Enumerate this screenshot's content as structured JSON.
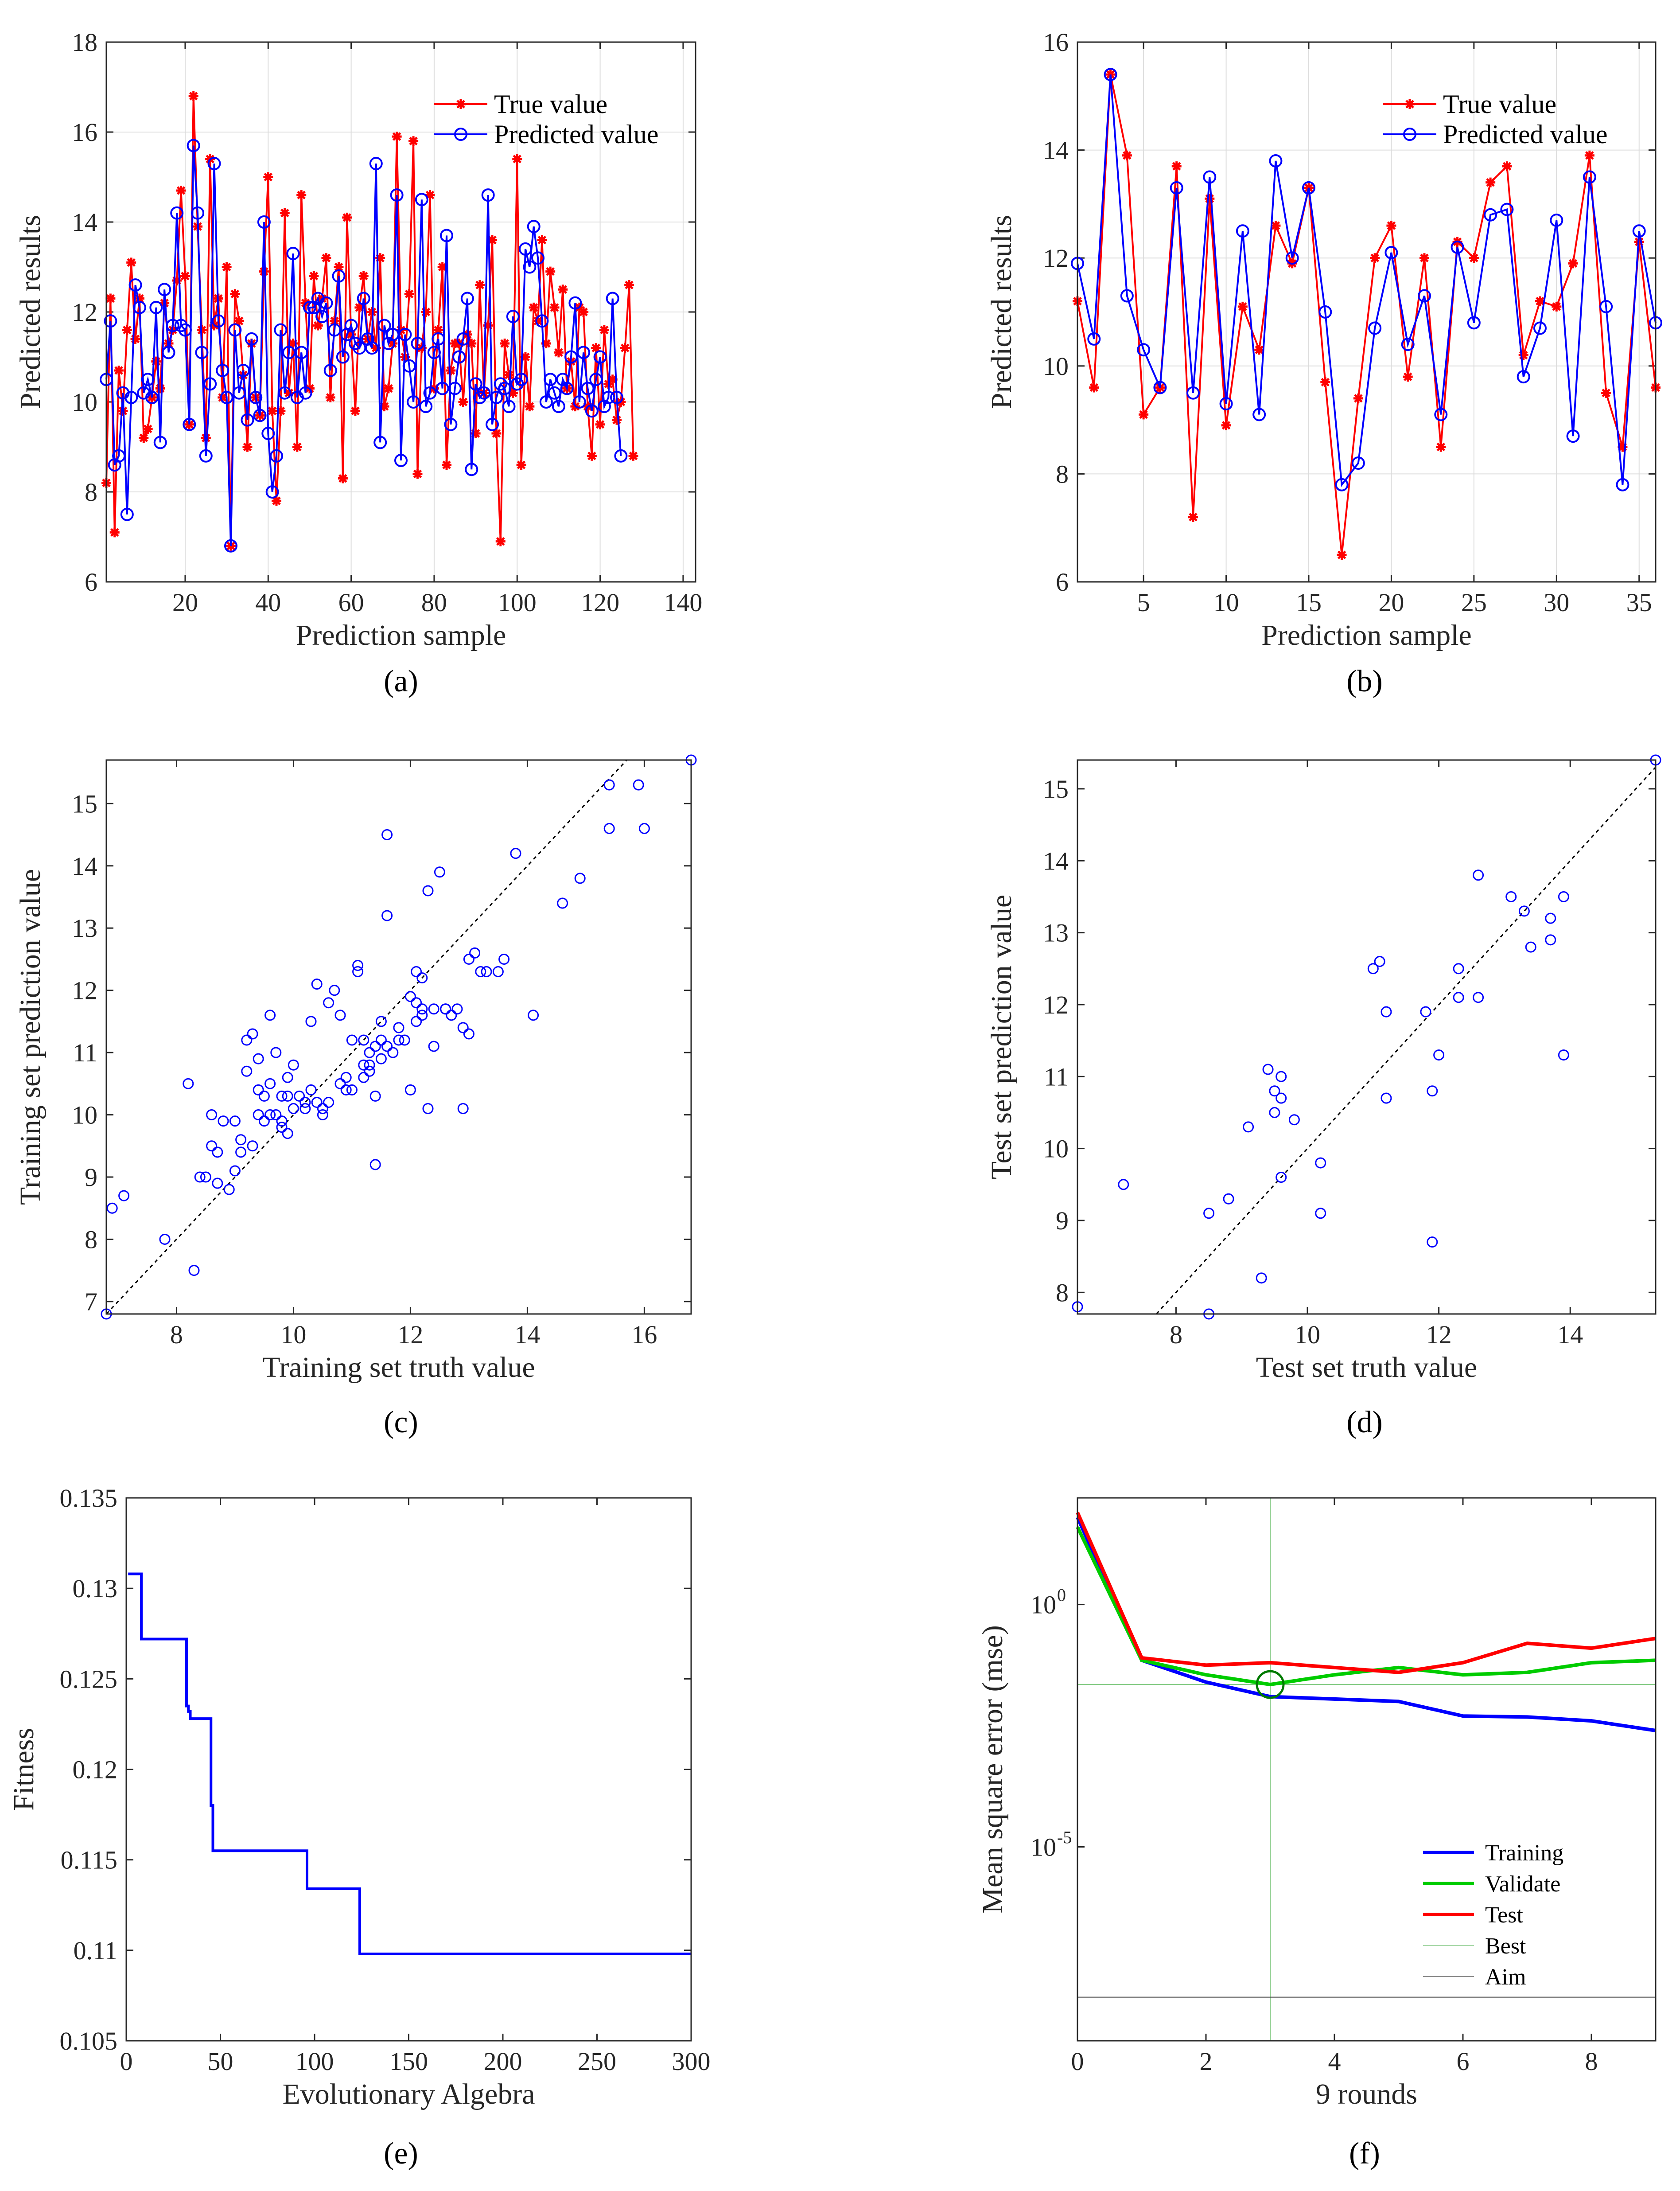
{
  "chart_data": [
    {
      "id": "a",
      "type": "line",
      "panel_label": "(a)",
      "xlabel": "Prediction sample",
      "ylabel": "Predicted results",
      "xlim": [
        1,
        143
      ],
      "ylim": [
        6,
        18
      ],
      "xticks": [
        20,
        40,
        60,
        80,
        100,
        120,
        140
      ],
      "yticks": [
        6,
        8,
        10,
        12,
        14,
        16,
        18
      ],
      "legend": [
        "True value",
        "Predicted value"
      ],
      "series": [
        {
          "name": "True value",
          "color": "#ff0000",
          "marker": "star",
          "values": [
            8.2,
            12.3,
            7.1,
            10.7,
            9.8,
            11.6,
            13.1,
            11.4,
            12.3,
            9.2,
            9.4,
            10.1,
            10.9,
            10.3,
            12.2,
            11.3,
            11.6,
            12.7,
            14.7,
            12.8,
            9.5,
            16.8,
            13.9,
            11.6,
            9.2,
            15.4,
            11.7,
            12.3,
            10.1,
            13.0,
            6.8,
            12.4,
            11.8,
            10.6,
            9.0,
            11.3,
            10.1,
            9.7,
            12.9,
            15.0,
            9.8,
            7.8,
            9.8,
            14.2,
            10.2,
            11.3,
            9.0,
            14.6,
            12.2,
            10.3,
            12.8,
            11.7,
            12.3,
            13.2,
            10.1,
            11.8,
            13.0,
            8.3,
            14.1,
            11.5,
            9.8,
            12.1,
            12.8,
            11.4,
            12.0,
            11.2,
            13.2,
            9.9,
            10.3,
            11.3,
            15.9,
            11.6,
            11.0,
            12.4,
            15.8,
            8.4,
            11.2,
            12.0,
            14.6,
            10.3,
            11.6,
            13.0,
            8.6,
            10.7,
            11.3,
            11.3,
            10.0,
            11.5,
            11.3,
            9.3,
            12.6,
            10.2,
            11.7,
            13.6,
            9.3,
            6.9,
            11.3,
            10.6,
            10.2,
            15.4,
            8.6,
            11.0,
            9.9,
            12.1,
            11.8,
            13.6,
            11.3,
            12.9,
            12.1,
            11.1,
            12.5,
            10.3,
            10.9,
            9.9,
            12.1,
            12.0,
            9.9,
            8.8,
            11.2,
            9.5,
            11.6,
            10.4,
            10.5,
            9.6,
            10.0,
            11.2,
            12.6,
            8.8
          ]
        },
        {
          "name": "Predicted value",
          "color": "#0000ff",
          "marker": "circle",
          "values": [
            10.5,
            11.8,
            8.6,
            8.8,
            10.2,
            7.5,
            10.1,
            12.6,
            12.1,
            10.2,
            10.5,
            10.1,
            12.1,
            9.1,
            12.5,
            11.1,
            11.7,
            14.2,
            11.7,
            11.6,
            9.5,
            15.7,
            14.2,
            11.1,
            8.8,
            10.4,
            15.3,
            11.8,
            10.7,
            10.1,
            6.8,
            11.6,
            10.2,
            10.7,
            9.6,
            11.4,
            10.1,
            9.7,
            14.0,
            9.3,
            8.0,
            8.8,
            11.6,
            10.2,
            11.1,
            13.3,
            10.1,
            11.1,
            10.2,
            12.1,
            12.1,
            12.3,
            11.9,
            12.2,
            10.7,
            11.6,
            12.8,
            11.0,
            11.5,
            11.7,
            11.3,
            11.2,
            12.3,
            11.4,
            11.2,
            15.3,
            9.1,
            11.7,
            11.3,
            11.5,
            14.6,
            8.7,
            11.5,
            10.8,
            10.0,
            11.3,
            14.5,
            9.9,
            10.2,
            11.1,
            11.4,
            10.3,
            13.7,
            9.5,
            10.3,
            11.0,
            11.4,
            12.3,
            8.5,
            10.4,
            10.1,
            10.2,
            14.6,
            9.5,
            10.1,
            10.4,
            10.3,
            9.9,
            11.9,
            10.4,
            10.5,
            13.4,
            13.0,
            13.9,
            13.2,
            11.8,
            10.0,
            10.5,
            10.2,
            9.9,
            10.5,
            10.3,
            11.0,
            12.2,
            10.0,
            11.1,
            10.3,
            9.8,
            10.5,
            11.0,
            9.9,
            10.1,
            12.3,
            10.1,
            8.8
          ]
        }
      ]
    },
    {
      "id": "b",
      "type": "line",
      "panel_label": "(b)",
      "xlabel": "Prediction sample",
      "ylabel": "Predicted results",
      "xlim": [
        1,
        36
      ],
      "ylim": [
        6,
        16
      ],
      "xticks": [
        5,
        10,
        15,
        20,
        25,
        30,
        35
      ],
      "yticks": [
        6,
        8,
        10,
        12,
        14,
        16
      ],
      "legend": [
        "True value",
        "Predicted value"
      ],
      "series": [
        {
          "name": "True value",
          "color": "#ff0000",
          "marker": "star",
          "values": [
            11.2,
            9.6,
            15.4,
            13.9,
            9.1,
            9.6,
            13.7,
            7.2,
            13.1,
            8.9,
            11.1,
            10.3,
            12.6,
            11.9,
            13.3,
            9.7,
            6.5,
            9.4,
            12.0,
            12.6,
            9.8,
            12.0,
            8.5,
            12.3,
            12.0,
            13.4,
            13.7,
            10.2,
            11.2,
            11.1,
            11.9,
            13.9,
            9.5,
            8.5,
            12.3,
            9.6
          ]
        },
        {
          "name": "Predicted value",
          "color": "#0000ff",
          "marker": "circle",
          "values": [
            11.9,
            10.5,
            15.4,
            11.3,
            10.3,
            9.6,
            13.3,
            9.5,
            13.5,
            9.3,
            12.5,
            9.1,
            13.8,
            12.0,
            13.3,
            11.0,
            7.8,
            8.2,
            10.7,
            12.1,
            10.4,
            11.3,
            9.1,
            12.2,
            10.8,
            12.8,
            12.9,
            9.8,
            10.7,
            12.7,
            8.7,
            13.5,
            11.1,
            7.8,
            12.5,
            10.8
          ]
        }
      ]
    },
    {
      "id": "c",
      "type": "scatter",
      "panel_label": "(c)",
      "xlabel": "Training set truth value",
      "ylabel": "Training set prediction value",
      "xlim": [
        6.8,
        16.8
      ],
      "ylim": [
        6.8,
        15.7
      ],
      "xticks": [
        8,
        10,
        12,
        14,
        16
      ],
      "yticks": [
        7,
        8,
        9,
        10,
        11,
        12,
        13,
        14,
        15
      ],
      "reference_line": "y = x",
      "x": [
        6.8,
        6.9,
        7.1,
        7.8,
        8.3,
        8.2,
        8.5,
        8.6,
        8.7,
        8.8,
        8.9,
        9.0,
        9.1,
        9.2,
        9.2,
        9.3,
        9.4,
        9.4,
        9.5,
        9.5,
        9.6,
        9.6,
        9.7,
        9.7,
        9.8,
        9.8,
        9.9,
        9.9,
        10.0,
        10.1,
        10.2,
        10.3,
        10.4,
        10.5,
        10.6,
        10.6,
        10.7,
        10.8,
        10.9,
        11.0,
        11.0,
        11.1,
        11.1,
        11.2,
        11.2,
        11.3,
        11.3,
        11.4,
        11.4,
        11.5,
        11.5,
        11.6,
        11.6,
        11.7,
        11.8,
        11.9,
        12.0,
        12.0,
        12.1,
        12.1,
        12.2,
        12.2,
        12.3,
        12.3,
        12.4,
        12.5,
        12.6,
        12.7,
        12.8,
        12.9,
        13.0,
        13.0,
        13.1,
        13.2,
        13.3,
        13.5,
        13.6,
        13.8,
        14.1,
        14.6,
        14.9,
        15.4,
        15.4,
        15.9,
        16.0,
        16.8,
        8.4,
        8.7,
        9.0,
        9.3,
        9.9,
        10.2,
        10.5,
        10.9,
        11.3,
        11.6,
        12.2,
        12.6,
        9.1,
        9.6,
        10.0,
        10.4,
        10.8,
        11.2,
        11.8,
        12.4,
        9.4,
        10.3,
        11.5,
        12.9,
        8.6,
        9.8,
        11.4,
        12.1
      ],
      "y": [
        6.8,
        8.5,
        8.7,
        8.0,
        7.5,
        10.5,
        9.0,
        9.5,
        8.9,
        9.9,
        8.8,
        9.9,
        9.6,
        11.2,
        10.7,
        11.3,
        10.0,
        10.4,
        9.9,
        10.3,
        10.5,
        11.6,
        11.0,
        10.0,
        10.3,
        9.9,
        10.3,
        10.6,
        10.8,
        10.3,
        10.2,
        11.5,
        12.1,
        10.1,
        10.2,
        11.8,
        12.0,
        11.6,
        10.4,
        11.2,
        10.4,
        12.3,
        12.4,
        10.8,
        11.2,
        11.0,
        10.7,
        9.2,
        10.3,
        11.5,
        10.9,
        13.2,
        14.5,
        11.0,
        11.4,
        11.2,
        11.9,
        10.4,
        11.8,
        12.3,
        11.6,
        12.2,
        10.1,
        13.6,
        11.7,
        13.9,
        11.7,
        11.6,
        11.7,
        11.4,
        12.5,
        11.3,
        12.6,
        12.3,
        12.3,
        12.3,
        12.5,
        14.2,
        11.6,
        13.4,
        13.8,
        14.6,
        15.3,
        15.3,
        14.6,
        15.7,
        9.0,
        9.4,
        9.1,
        9.5,
        9.7,
        10.1,
        10.0,
        10.6,
        10.8,
        11.1,
        11.7,
        11.7,
        9.4,
        10.0,
        10.1,
        10.2,
        10.5,
        10.6,
        11.2,
        11.1,
        10.9,
        10.4,
        11.2,
        10.1,
        10.0,
        9.8,
        11.1,
        11.5
      ]
    },
    {
      "id": "d",
      "type": "scatter",
      "panel_label": "(d)",
      "xlabel": "Test set truth value",
      "ylabel": "Test set prediction value",
      "xlim": [
        6.5,
        15.3
      ],
      "ylim": [
        7.7,
        15.4
      ],
      "xticks": [
        8,
        10,
        12,
        14
      ],
      "yticks": [
        8,
        9,
        10,
        11,
        12,
        13,
        14,
        15
      ],
      "reference_line": "y = x",
      "x": [
        6.5,
        7.2,
        8.5,
        8.5,
        8.8,
        9.1,
        9.3,
        9.4,
        9.5,
        9.5,
        9.6,
        9.6,
        9.6,
        9.8,
        10.2,
        10.2,
        11.1,
        11.0,
        11.2,
        11.2,
        11.8,
        11.9,
        11.9,
        12.0,
        12.3,
        12.3,
        12.6,
        12.6,
        13.1,
        13.3,
        13.4,
        13.7,
        13.7,
        13.9,
        13.9,
        15.3
      ],
      "y": [
        7.8,
        9.5,
        9.1,
        7.7,
        9.3,
        10.3,
        8.2,
        11.1,
        10.8,
        10.5,
        11.0,
        9.6,
        10.7,
        10.4,
        9.8,
        9.1,
        12.6,
        12.5,
        11.9,
        10.7,
        11.9,
        8.7,
        10.8,
        11.3,
        12.5,
        12.1,
        13.8,
        12.1,
        13.5,
        13.3,
        12.8,
        13.2,
        12.9,
        13.5,
        11.3,
        15.4
      ]
    },
    {
      "id": "e",
      "type": "line",
      "panel_label": "(e)",
      "xlabel": "Evolutionary Algebra",
      "ylabel": "Fitness",
      "xlim": [
        0,
        300
      ],
      "ylim": [
        0.105,
        0.135
      ],
      "xticks": [
        0,
        50,
        100,
        150,
        200,
        250,
        300
      ],
      "ytick_labels": [
        "0.105",
        "0.11",
        "0.115",
        "0.12",
        "0.125",
        "0.13",
        "0.135"
      ],
      "yticks": [
        0.105,
        0.11,
        0.115,
        0.12,
        0.125,
        0.13,
        0.135
      ],
      "series": [
        {
          "name": "Fitness",
          "color": "#0000ff",
          "step": true,
          "x": [
            1,
            8,
            8,
            32,
            32,
            33,
            33,
            34,
            34,
            45,
            45,
            46,
            46,
            96,
            96,
            124,
            124,
            300
          ],
          "y": [
            0.1308,
            0.1308,
            0.1272,
            0.1272,
            0.1235,
            0.1235,
            0.1232,
            0.1232,
            0.1228,
            0.1228,
            0.118,
            0.118,
            0.1155,
            0.1155,
            0.1134,
            0.1134,
            0.1098,
            0.1098
          ]
        }
      ]
    },
    {
      "id": "f",
      "type": "line",
      "panel_label": "(f)",
      "yscale": "log",
      "xlabel": "9 rounds",
      "ylabel": "Mean square error (mse)",
      "xlim": [
        0,
        9
      ],
      "ylog_range": [
        -9,
        2.2
      ],
      "xticks": [
        0,
        2,
        4,
        6,
        8
      ],
      "ytick_labels": [
        "10",
        "10"
      ],
      "ytick_exponents": [
        "0",
        "-5"
      ],
      "ytick_log": [
        0,
        -5
      ],
      "legend": [
        "Training",
        "Validate",
        "Test",
        "Best",
        "Aim"
      ],
      "best_epoch": 3,
      "best_log": -1.65,
      "aim_log": -8.1,
      "series": [
        {
          "name": "Training",
          "color": "#0000ff",
          "x": [
            0,
            1,
            2,
            3,
            4,
            5,
            6,
            7,
            8,
            9
          ],
          "ylog": [
            1.8,
            -1.15,
            -1.6,
            -1.9,
            -1.95,
            -2.0,
            -2.3,
            -2.32,
            -2.4,
            -2.6
          ]
        },
        {
          "name": "Validate",
          "color": "#00cc00",
          "x": [
            0,
            1,
            2,
            3,
            4,
            5,
            6,
            7,
            8,
            9
          ],
          "ylog": [
            1.6,
            -1.15,
            -1.45,
            -1.65,
            -1.45,
            -1.3,
            -1.45,
            -1.4,
            -1.2,
            -1.15
          ]
        },
        {
          "name": "Test",
          "color": "#ff0000",
          "x": [
            0,
            1,
            2,
            3,
            4,
            5,
            6,
            7,
            8,
            9
          ],
          "ylog": [
            1.9,
            -1.1,
            -1.25,
            -1.2,
            -1.3,
            -1.4,
            -1.2,
            -0.8,
            -0.9,
            -0.7
          ]
        }
      ]
    }
  ]
}
